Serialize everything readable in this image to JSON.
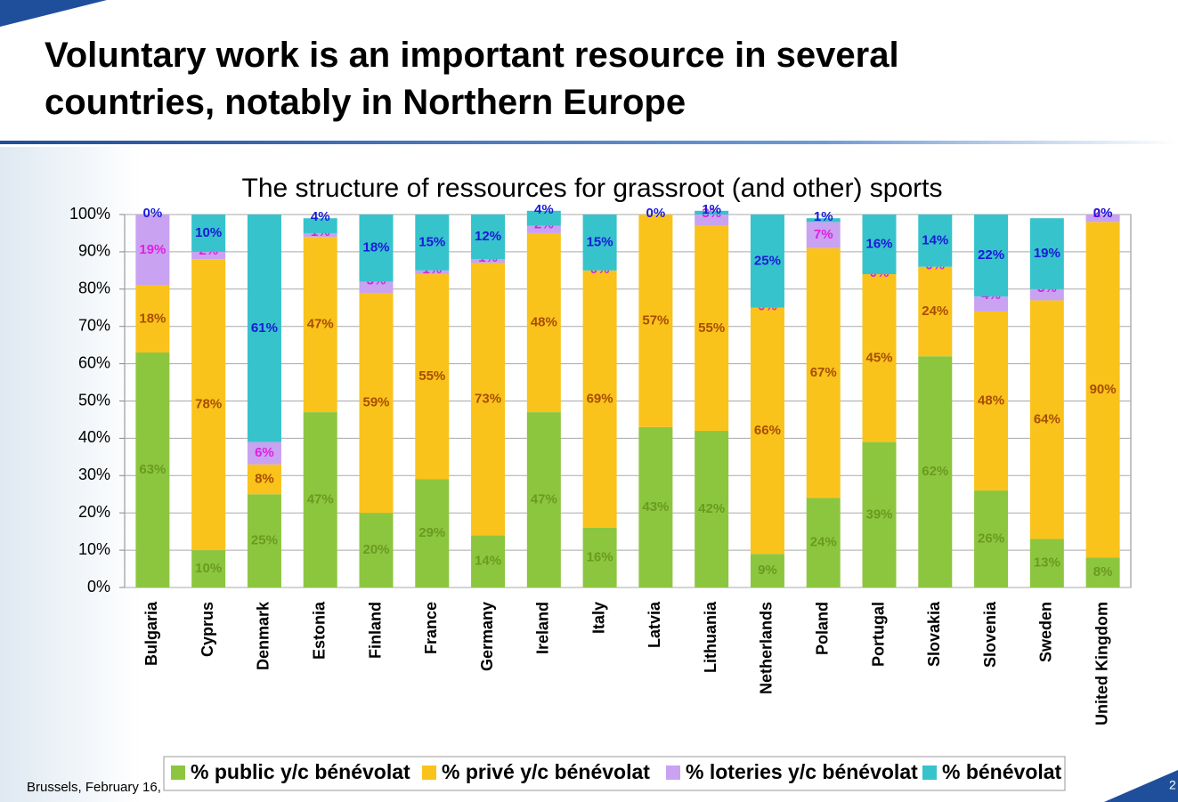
{
  "header": {
    "title_lines": [
      "Voluntary work is an important resource in several",
      "countries, notably in Northern Europe"
    ]
  },
  "footer": {
    "text": "Brussels, February 16,",
    "page": "2"
  },
  "chart_data": {
    "type": "stacked_bar",
    "title": "The structure of ressources for grassroot (and other) sports",
    "categories": [
      "Bulgaria",
      "Cyprus",
      "Denmark",
      "Estonia",
      "Finland",
      "France",
      "Germany",
      "Ireland",
      "Italy",
      "Latvia",
      "Lithuania",
      "Netherlands",
      "Poland",
      "Portugal",
      "Slovakia",
      "Slovenia",
      "Sweden",
      "United Kingdom"
    ],
    "series": [
      {
        "name": "% public y/c bénévolat",
        "color": "#8cc63f",
        "label_color": "#6a9a20",
        "values": [
          63,
          10,
          25,
          47,
          20,
          29,
          14,
          47,
          16,
          43,
          42,
          9,
          24,
          39,
          62,
          26,
          13,
          8
        ],
        "value_labels": [
          "63%",
          "10%",
          "25%",
          "47%",
          "20%",
          "29%",
          "14%",
          "47%",
          "16%",
          "43%",
          "42%",
          "9%",
          "24%",
          "39%",
          "62%",
          "26%",
          "13%",
          "8%"
        ]
      },
      {
        "name": "% privé y/c bénévolat",
        "color": "#f9c31c",
        "label_color": "#a84e00",
        "values": [
          18,
          78,
          8,
          47,
          59,
          55,
          73,
          48,
          69,
          57,
          55,
          66,
          67,
          45,
          24,
          48,
          64,
          90
        ],
        "value_labels": [
          "18%",
          "78%",
          "8%",
          "47%",
          "59%",
          "55%",
          "73%",
          "48%",
          "69%",
          "57%",
          "55%",
          "66%",
          "67%",
          "45%",
          "24%",
          "48%",
          "64%",
          "90%"
        ]
      },
      {
        "name": "% loteries y/c bénévolat",
        "color": "#c9a2f2",
        "label_color": "#e020e0",
        "values": [
          19,
          2,
          6,
          1,
          3,
          1,
          1,
          2,
          0,
          0,
          3,
          0,
          7,
          0,
          0,
          4,
          3,
          2
        ],
        "value_labels": [
          "19%",
          "2%",
          "6%",
          "1%",
          "3%",
          "1%",
          "1%",
          "2%",
          "0%",
          null,
          "3%",
          "0%",
          "7%",
          "0%",
          "0%",
          "4%",
          "3%",
          "2%"
        ]
      },
      {
        "name": "% bénévolat",
        "color": "#36c3cc",
        "label_color": "#1a1ad8",
        "values": [
          0,
          10,
          61,
          4,
          18,
          15,
          12,
          4,
          15,
          0,
          1,
          25,
          1,
          16,
          14,
          22,
          19,
          0
        ],
        "value_labels": [
          "0%",
          "10%",
          "61%",
          "4%",
          "18%",
          "15%",
          "12%",
          "4%",
          "15%",
          "0%",
          "1%",
          "25%",
          "1%",
          "16%",
          "14%",
          "22%",
          "19%",
          "0%"
        ]
      }
    ],
    "ylim": [
      0,
      100
    ],
    "yticks": [
      {
        "value": 0,
        "label": "0%"
      },
      {
        "value": 10,
        "label": "10%"
      },
      {
        "value": 20,
        "label": "20%"
      },
      {
        "value": 30,
        "label": "30%"
      },
      {
        "value": 40,
        "label": "40%"
      },
      {
        "value": 50,
        "label": "50%"
      },
      {
        "value": 60,
        "label": "60%"
      },
      {
        "value": 70,
        "label": "70%"
      },
      {
        "value": 80,
        "label": "80%"
      },
      {
        "value": 90,
        "label": "90%"
      },
      {
        "value": 100,
        "label": "100%"
      }
    ],
    "grid": true,
    "legend": "bottom"
  }
}
